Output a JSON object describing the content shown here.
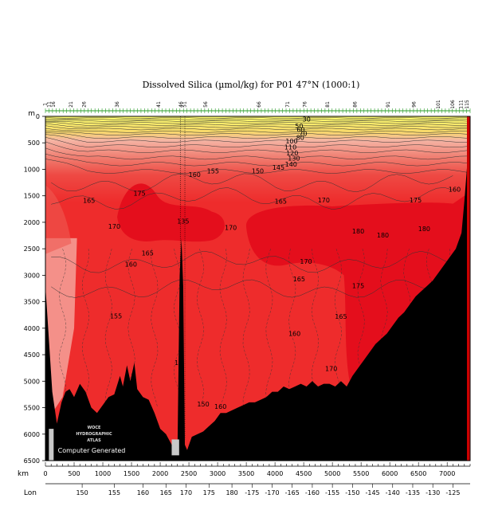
{
  "chart_data": {
    "type": "heatmap",
    "title": "Dissolved Silica (µmol/kg) for P01 47°N (1000:1)",
    "ylabel": "m",
    "xlabel": "km",
    "x2label": "Lon",
    "ylim": [
      6500,
      0
    ],
    "xlim": [
      0,
      7400
    ],
    "y_ticks": [
      0,
      500,
      1000,
      1500,
      2000,
      2500,
      3000,
      3500,
      4000,
      4500,
      5000,
      5500,
      6000,
      6500
    ],
    "x_ticks": [
      0,
      500,
      1000,
      1500,
      2000,
      2500,
      3000,
      3500,
      4000,
      4500,
      5000,
      5500,
      6000,
      6500,
      7000
    ],
    "lon_ticks": [
      {
        "km": 640,
        "label": "150"
      },
      {
        "km": 1200,
        "label": "155"
      },
      {
        "km": 1700,
        "label": "160"
      },
      {
        "km": 2100,
        "label": "165"
      },
      {
        "km": 2450,
        "label": "170"
      },
      {
        "km": 2850,
        "label": "175"
      },
      {
        "km": 3250,
        "label": "180"
      },
      {
        "km": 3600,
        "label": "-175"
      },
      {
        "km": 3950,
        "label": "-170"
      },
      {
        "km": 4300,
        "label": "-165"
      },
      {
        "km": 4650,
        "label": "-160"
      },
      {
        "km": 5000,
        "label": "-155"
      },
      {
        "km": 5350,
        "label": "-150"
      },
      {
        "km": 5700,
        "label": "-145"
      },
      {
        "km": 6050,
        "label": "-140"
      },
      {
        "km": 6400,
        "label": "-135"
      },
      {
        "km": 6750,
        "label": "-130"
      },
      {
        "km": 7100,
        "label": "-125"
      }
    ],
    "stations": [
      {
        "km": 20,
        "label": "1"
      },
      {
        "km": 90,
        "label": "11"
      },
      {
        "km": 170,
        "label": "16"
      },
      {
        "km": 470,
        "label": "21"
      },
      {
        "km": 700,
        "label": "26"
      },
      {
        "km": 1280,
        "label": "36"
      },
      {
        "km": 2000,
        "label": "41"
      },
      {
        "km": 2390,
        "label": "46"
      },
      {
        "km": 2450,
        "label": "51"
      },
      {
        "km": 2820,
        "label": "56"
      },
      {
        "km": 3750,
        "label": "66"
      },
      {
        "km": 4250,
        "label": "71"
      },
      {
        "km": 4550,
        "label": "76"
      },
      {
        "km": 4940,
        "label": "81"
      },
      {
        "km": 5420,
        "label": "86"
      },
      {
        "km": 6000,
        "label": "91"
      },
      {
        "km": 6450,
        "label": "96"
      },
      {
        "km": 6870,
        "label": "101"
      },
      {
        "km": 7120,
        "label": "106"
      },
      {
        "km": 7270,
        "label": "111"
      },
      {
        "km": 7370,
        "label": "115"
      }
    ],
    "contour_labels": [
      {
        "x": 4550,
        "y": 50,
        "label": "30"
      },
      {
        "x": 4420,
        "y": 180,
        "label": "50"
      },
      {
        "x": 4450,
        "y": 250,
        "label": "60"
      },
      {
        "x": 4490,
        "y": 320,
        "label": "70"
      },
      {
        "x": 4440,
        "y": 400,
        "label": "80"
      },
      {
        "x": 4290,
        "y": 470,
        "label": "100"
      },
      {
        "x": 4270,
        "y": 580,
        "label": "110"
      },
      {
        "x": 4300,
        "y": 690,
        "label": "120"
      },
      {
        "x": 4330,
        "y": 790,
        "label": "130"
      },
      {
        "x": 4280,
        "y": 900,
        "label": "140"
      },
      {
        "x": 4060,
        "y": 960,
        "label": "145"
      },
      {
        "x": 3700,
        "y": 1030,
        "label": "150"
      },
      {
        "x": 2920,
        "y": 1030,
        "label": "155"
      },
      {
        "x": 2600,
        "y": 1100,
        "label": "160"
      },
      {
        "x": 7130,
        "y": 1380,
        "label": "160"
      },
      {
        "x": 1640,
        "y": 1450,
        "label": "175"
      },
      {
        "x": 760,
        "y": 1590,
        "label": "165"
      },
      {
        "x": 4100,
        "y": 1600,
        "label": "165"
      },
      {
        "x": 4850,
        "y": 1580,
        "label": "170"
      },
      {
        "x": 6450,
        "y": 1580,
        "label": "175"
      },
      {
        "x": 2400,
        "y": 1980,
        "label": "135"
      },
      {
        "x": 1200,
        "y": 2080,
        "label": "170"
      },
      {
        "x": 3230,
        "y": 2100,
        "label": "170"
      },
      {
        "x": 5450,
        "y": 2170,
        "label": "180"
      },
      {
        "x": 5880,
        "y": 2240,
        "label": "180"
      },
      {
        "x": 6600,
        "y": 2120,
        "label": "180"
      },
      {
        "x": 1780,
        "y": 2580,
        "label": "165"
      },
      {
        "x": 1490,
        "y": 2790,
        "label": "160"
      },
      {
        "x": 4540,
        "y": 2740,
        "label": "170"
      },
      {
        "x": 4420,
        "y": 3070,
        "label": "165"
      },
      {
        "x": 5450,
        "y": 3200,
        "label": "175"
      },
      {
        "x": 1230,
        "y": 3770,
        "label": "155"
      },
      {
        "x": 5150,
        "y": 3780,
        "label": "165"
      },
      {
        "x": 4340,
        "y": 4100,
        "label": "160"
      },
      {
        "x": 2320,
        "y": 4650,
        "label": "15"
      },
      {
        "x": 4980,
        "y": 4760,
        "label": "170"
      },
      {
        "x": 3050,
        "y": 5480,
        "label": "160"
      },
      {
        "x": 2750,
        "y": 5430,
        "label": "150"
      }
    ],
    "grid": false,
    "colors": {
      "surface_yellow": "#ffff66",
      "light_pink": "#f4a29a",
      "mid_red": "#ef5a52",
      "main_red": "#ee2c2c",
      "deep_red": "#e40e1c",
      "bathymetry": "#000000",
      "contour": "#333333"
    }
  },
  "labels": {
    "y_unit": "m",
    "x_unit": "km",
    "lon": "Lon",
    "watermark_lines": [
      "WOCE",
      "HYDROGRAPHIC",
      "ATLAS"
    ],
    "computer_generated": "Computer Generated"
  }
}
